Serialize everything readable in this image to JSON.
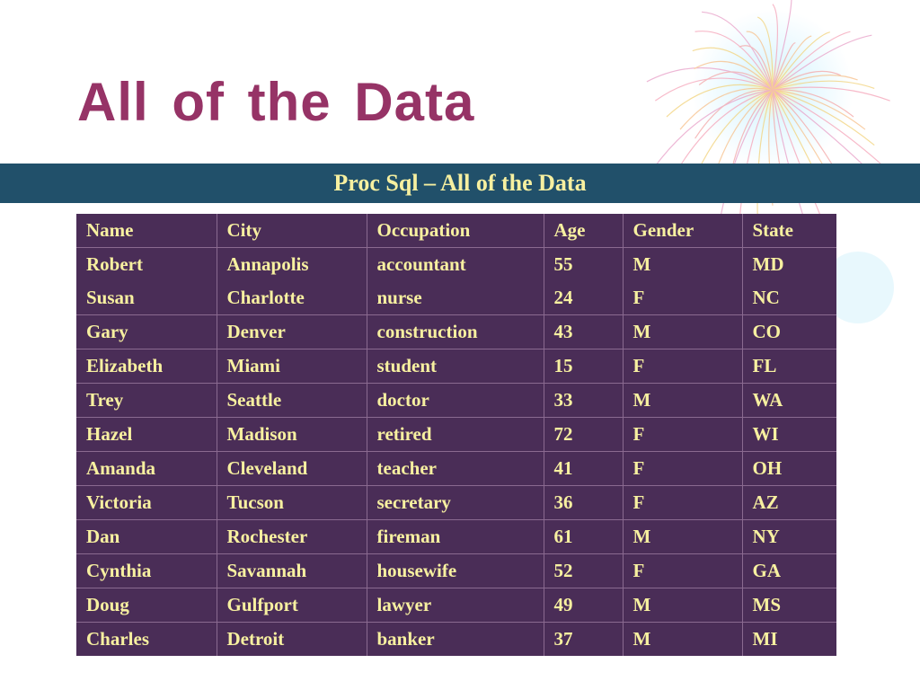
{
  "slide": {
    "title": "All of the Data",
    "banner": "Proc Sql – All of the Data"
  },
  "colors": {
    "title": "#963366",
    "banner_bg": "#21506a",
    "table_bg": "#4a2d57",
    "text": "#f7f0a0"
  },
  "table": {
    "headers": [
      "Name",
      "City",
      "Occupation",
      "Age",
      "Gender",
      "State"
    ],
    "rows": [
      [
        "Robert",
        "Annapolis",
        "accountant",
        "55",
        "M",
        "MD"
      ],
      [
        "Susan",
        "Charlotte",
        "nurse",
        "24",
        "F",
        "NC"
      ],
      [
        "Gary",
        "Denver",
        "construction",
        "43",
        "M",
        "CO"
      ],
      [
        "Elizabeth",
        "Miami",
        "student",
        "15",
        "F",
        "FL"
      ],
      [
        "Trey",
        "Seattle",
        "doctor",
        "33",
        "M",
        "WA"
      ],
      [
        "Hazel",
        "Madison",
        "retired",
        "72",
        "F",
        "WI"
      ],
      [
        "Amanda",
        "Cleveland",
        "teacher",
        "41",
        "F",
        "OH"
      ],
      [
        "Victoria",
        "Tucson",
        "secretary",
        "36",
        "F",
        "AZ"
      ],
      [
        "Dan",
        "Rochester",
        "fireman",
        "61",
        "M",
        "NY"
      ],
      [
        "Cynthia",
        "Savannah",
        "housewife",
        "52",
        "F",
        "GA"
      ],
      [
        "Doug",
        "Gulfport",
        "lawyer",
        "49",
        "M",
        "MS"
      ],
      [
        "Charles",
        "Detroit",
        "banker",
        "37",
        "M",
        "MI"
      ]
    ]
  }
}
